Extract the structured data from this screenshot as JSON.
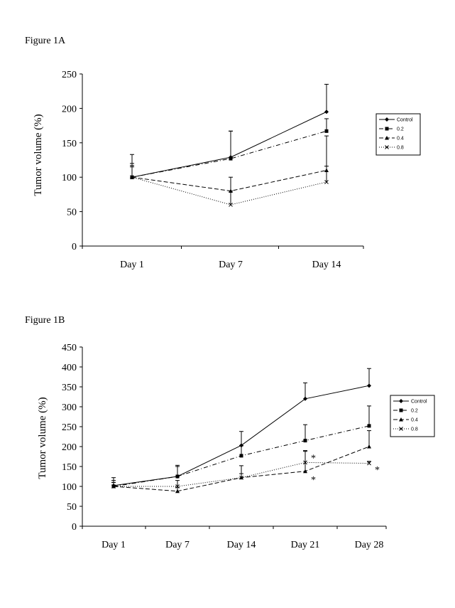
{
  "figures": {
    "a": {
      "label": "Figure 1A"
    },
    "b": {
      "label": "Figure 1B"
    }
  },
  "chart_data": [
    {
      "type": "line",
      "title": "Figure 1A",
      "xlabel": "",
      "ylabel": "Tumor volume (%)",
      "categories": [
        "Day 1",
        "Day 7",
        "Day 14"
      ],
      "ylim": [
        0,
        250
      ],
      "yticks": [
        0,
        50,
        100,
        150,
        200,
        250
      ],
      "legend_position": "right",
      "series": [
        {
          "name": "Control",
          "values": [
            100,
            129,
            195
          ],
          "err": [
            17,
            38,
            40
          ],
          "dash": "",
          "marker": "diamond"
        },
        {
          "name": "0.2",
          "values": [
            100,
            127,
            167
          ],
          "err": [
            33,
            40,
            18
          ],
          "dash": "6 3 1 3",
          "marker": "square"
        },
        {
          "name": "0.4",
          "values": [
            100,
            80,
            110
          ],
          "err": [
            20,
            20,
            50
          ],
          "dash": "6 3",
          "marker": "triangle"
        },
        {
          "name": "0.8",
          "values": [
            100,
            60,
            93
          ],
          "err": [
            15,
            20,
            23
          ],
          "dash": "1 2",
          "marker": "x"
        }
      ],
      "annotations": []
    },
    {
      "type": "line",
      "title": "Figure 1B",
      "xlabel": "",
      "ylabel": "Tumor volume (%)",
      "categories": [
        "Day 1",
        "Day 7",
        "Day 14",
        "Day 21",
        "Day 28"
      ],
      "ylim": [
        0,
        450
      ],
      "yticks": [
        0,
        50,
        100,
        150,
        200,
        250,
        300,
        350,
        400,
        450
      ],
      "legend_position": "right",
      "series": [
        {
          "name": "Control",
          "values": [
            102,
            125,
            203,
            320,
            353
          ],
          "err": [
            20,
            28,
            35,
            40,
            43
          ],
          "dash": "",
          "marker": "diamond"
        },
        {
          "name": "0.2",
          "values": [
            100,
            125,
            177,
            215,
            252
          ],
          "err": [
            15,
            25,
            25,
            40,
            50
          ],
          "dash": "6 3 1 3",
          "marker": "square"
        },
        {
          "name": "0.4",
          "values": [
            100,
            88,
            122,
            138,
            200
          ],
          "err": [
            10,
            10,
            30,
            50,
            40
          ],
          "dash": "6 3",
          "marker": "triangle"
        },
        {
          "name": "0.8",
          "values": [
            100,
            100,
            122,
            160,
            158
          ],
          "err": [
            10,
            15,
            10,
            30,
            5
          ],
          "dash": "1 2",
          "marker": "x"
        }
      ],
      "annotations": [
        {
          "text": "*",
          "x": "Day 21",
          "y": 172,
          "note": "0.8 at Day 21"
        },
        {
          "text": "*",
          "x": "Day 21",
          "y": 118,
          "note": "0.4 at Day 21"
        },
        {
          "text": "*",
          "x": "Day 28",
          "y": 143,
          "note": "0.8 at Day 28"
        }
      ]
    }
  ]
}
